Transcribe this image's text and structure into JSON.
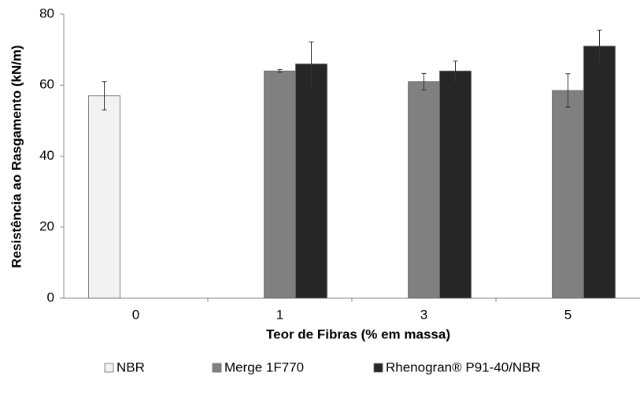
{
  "chart_data": {
    "type": "bar",
    "x_label": "Teor de Fibras (% em massa)",
    "y_label": "Resistência ao Rasgamento (kN/m)",
    "categories": [
      "0",
      "1",
      "3",
      "5"
    ],
    "series": [
      {
        "name": "NBR",
        "color": "#f2f2f2",
        "values": [
          57,
          null,
          null,
          null
        ],
        "errors": [
          4,
          null,
          null,
          null
        ]
      },
      {
        "name": "Merge 1F770",
        "color": "#808080",
        "values": [
          null,
          64,
          61,
          58.5
        ],
        "errors": [
          null,
          0.4,
          2.3,
          4.7
        ]
      },
      {
        "name": "Rhenogran® P91-40/NBR",
        "color": "#262626",
        "values": [
          null,
          66,
          64,
          71
        ],
        "errors": [
          null,
          6.2,
          2.8,
          4.5
        ]
      }
    ],
    "ylim": [
      0,
      80
    ],
    "yticks": [
      0,
      20,
      40,
      60,
      80
    ],
    "grid": false,
    "legend": "bottom"
  }
}
